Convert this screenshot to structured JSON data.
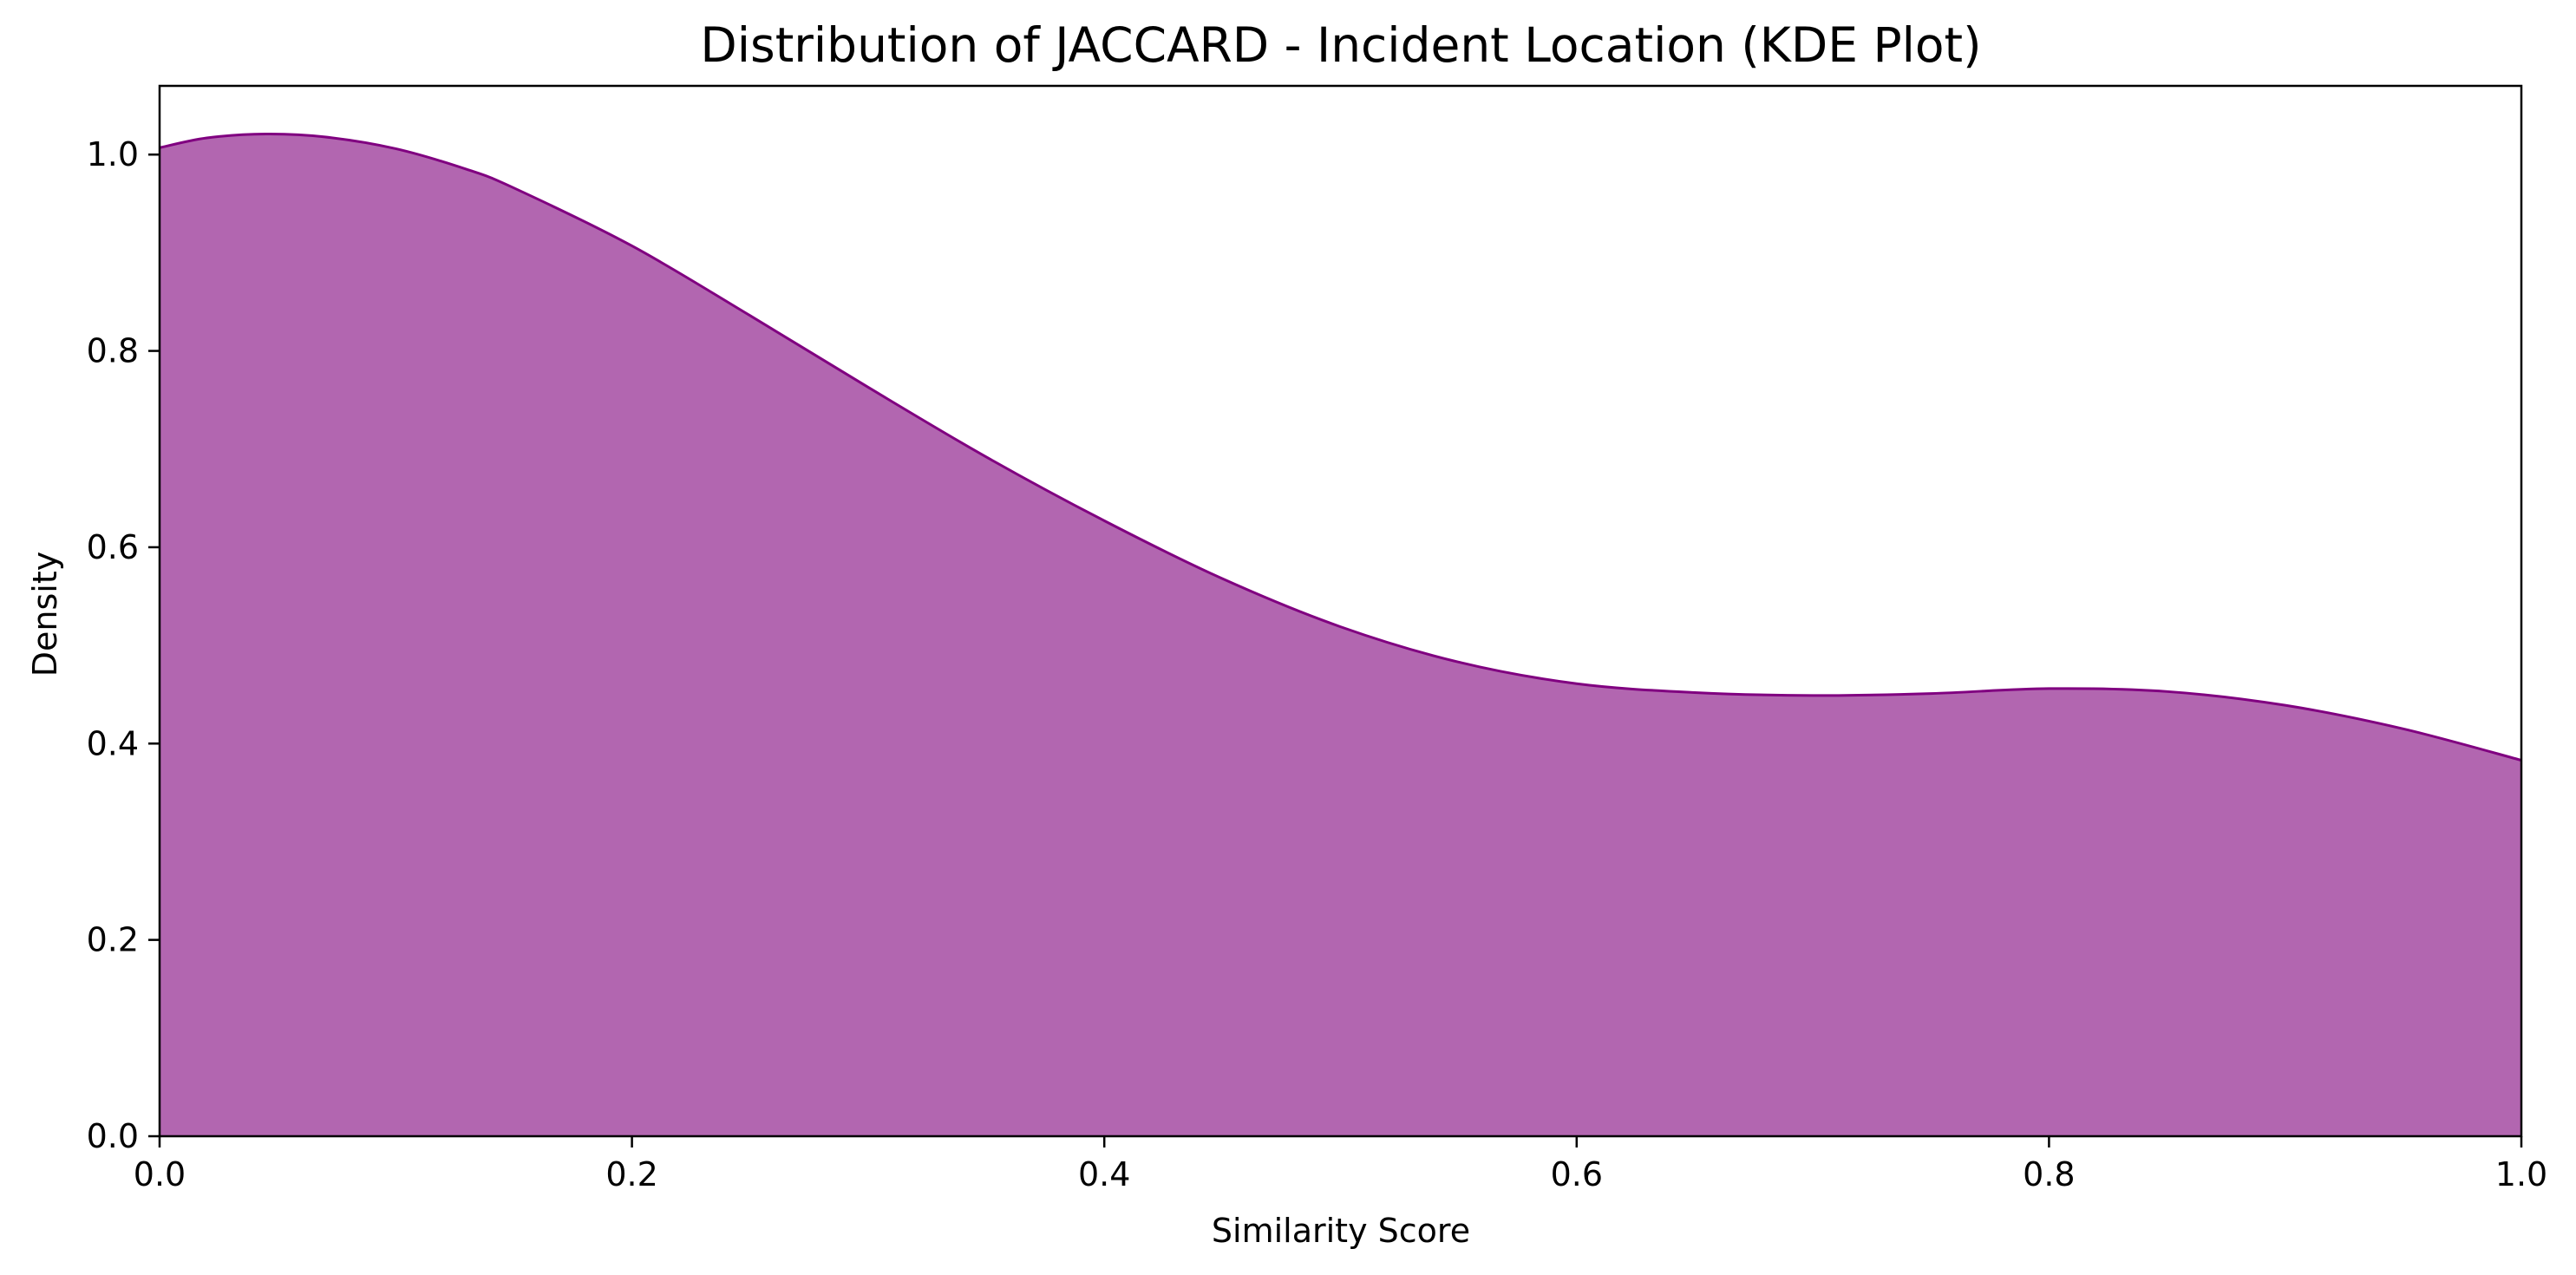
{
  "chart_data": {
    "type": "area",
    "title": "Distribution of JACCARD - Incident Location (KDE Plot)",
    "xlabel": "Similarity Score",
    "ylabel": "Density",
    "xlim": [
      0.0,
      1.0
    ],
    "ylim": [
      0.0,
      1.07
    ],
    "xticks": [
      "0.0",
      "0.2",
      "0.4",
      "0.6",
      "0.8",
      "1.0"
    ],
    "yticks": [
      "0.0",
      "0.2",
      "0.4",
      "0.6",
      "0.8",
      "1.0"
    ],
    "grid": false,
    "colors": {
      "fill": "#b266b0",
      "line": "#800080",
      "axes": "#000000"
    },
    "series": [
      {
        "x": [
          0.0,
          0.02,
          0.045,
          0.07,
          0.1,
          0.13,
          0.15,
          0.2,
          0.25,
          0.3,
          0.35,
          0.4,
          0.45,
          0.5,
          0.55,
          0.6,
          0.65,
          0.7,
          0.75,
          0.8,
          0.85,
          0.9,
          0.95,
          1.0
        ],
        "y": [
          1.007,
          1.017,
          1.021,
          1.018,
          1.006,
          0.985,
          0.966,
          0.907,
          0.836,
          0.763,
          0.692,
          0.627,
          0.568,
          0.519,
          0.483,
          0.461,
          0.452,
          0.449,
          0.451,
          0.456,
          0.453,
          0.439,
          0.415,
          0.383
        ]
      }
    ]
  }
}
